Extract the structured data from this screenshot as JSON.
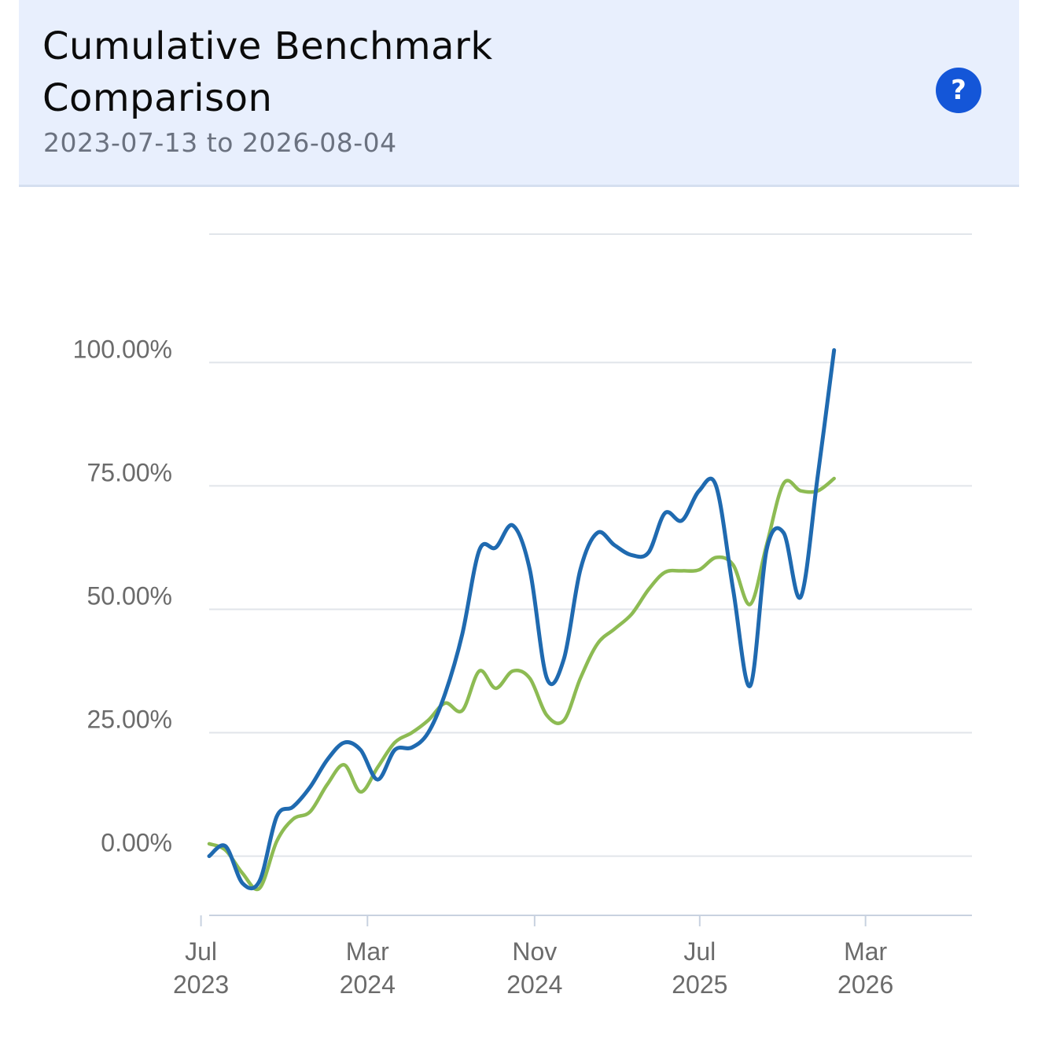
{
  "header": {
    "title": "Cumulative Benchmark Comparison",
    "subtitle": "2023-07-13 to 2026-08-04",
    "help_label": "?"
  },
  "chart_data": {
    "type": "line",
    "x_start": "2023-07-13",
    "x_end": "2026-08-04",
    "ylim": [
      -12,
      126
    ],
    "y_ticks": [
      {
        "value": 0,
        "label": "0.00%"
      },
      {
        "value": 25,
        "label": "25.00%"
      },
      {
        "value": 50,
        "label": "50.00%"
      },
      {
        "value": 75,
        "label": "75.00%"
      },
      {
        "value": 100,
        "label": "100.00%"
      }
    ],
    "x_ticks": [
      {
        "date": "2023-07-01",
        "month": "Jul",
        "year": "2023"
      },
      {
        "date": "2024-03-01",
        "month": "Mar",
        "year": "2024"
      },
      {
        "date": "2024-11-01",
        "month": "Nov",
        "year": "2024"
      },
      {
        "date": "2025-07-01",
        "month": "Jul",
        "year": "2025"
      },
      {
        "date": "2026-03-01",
        "month": "Mar",
        "year": "2026"
      }
    ],
    "grid": true,
    "series": [
      {
        "color": "#8dbb53",
        "points": [
          [
            "2023-07-13",
            2.5
          ],
          [
            "2023-08-06",
            1.2
          ],
          [
            "2023-08-31",
            -3.5
          ],
          [
            "2023-09-25",
            -6.5
          ],
          [
            "2023-10-20",
            3.0
          ],
          [
            "2023-11-13",
            7.5
          ],
          [
            "2023-12-08",
            9.0
          ],
          [
            "2024-01-02",
            14.5
          ],
          [
            "2024-01-27",
            18.5
          ],
          [
            "2024-02-20",
            13.0
          ],
          [
            "2024-03-16",
            18.0
          ],
          [
            "2024-04-10",
            23.0
          ],
          [
            "2024-05-05",
            25.0
          ],
          [
            "2024-05-29",
            27.5
          ],
          [
            "2024-06-23",
            31.0
          ],
          [
            "2024-07-18",
            29.5
          ],
          [
            "2024-08-12",
            37.5
          ],
          [
            "2024-09-05",
            34.0
          ],
          [
            "2024-09-30",
            37.5
          ],
          [
            "2024-10-25",
            36.0
          ],
          [
            "2024-11-19",
            28.5
          ],
          [
            "2024-12-14",
            27.5
          ],
          [
            "2025-01-07",
            36.0
          ],
          [
            "2025-02-01",
            43.0
          ],
          [
            "2025-02-26",
            46.0
          ],
          [
            "2025-03-23",
            49.0
          ],
          [
            "2025-04-17",
            54.0
          ],
          [
            "2025-05-11",
            57.5
          ],
          [
            "2025-06-05",
            57.8
          ],
          [
            "2025-06-30",
            58.0
          ],
          [
            "2025-07-25",
            60.5
          ],
          [
            "2025-08-19",
            59.0
          ],
          [
            "2025-09-13",
            51.0
          ],
          [
            "2025-10-07",
            63.0
          ],
          [
            "2025-11-01",
            75.5
          ],
          [
            "2025-11-26",
            74.0
          ],
          [
            "2025-12-21",
            74.0
          ],
          [
            "2026-01-14",
            76.5
          ]
        ]
      },
      {
        "color": "#1f6ab0",
        "points": [
          [
            "2023-07-13",
            0.0
          ],
          [
            "2023-08-06",
            2.0
          ],
          [
            "2023-08-31",
            -5.5
          ],
          [
            "2023-09-25",
            -5.0
          ],
          [
            "2023-10-20",
            8.0
          ],
          [
            "2023-11-13",
            10.0
          ],
          [
            "2023-12-08",
            14.0
          ],
          [
            "2024-01-02",
            19.5
          ],
          [
            "2024-01-27",
            23.0
          ],
          [
            "2024-02-20",
            21.5
          ],
          [
            "2024-03-16",
            15.5
          ],
          [
            "2024-04-10",
            21.5
          ],
          [
            "2024-05-05",
            22.0
          ],
          [
            "2024-05-29",
            25.0
          ],
          [
            "2024-06-23",
            33.0
          ],
          [
            "2024-07-18",
            45.0
          ],
          [
            "2024-08-12",
            62.0
          ],
          [
            "2024-09-05",
            62.5
          ],
          [
            "2024-09-30",
            67.0
          ],
          [
            "2024-10-25",
            58.0
          ],
          [
            "2024-11-19",
            36.0
          ],
          [
            "2024-12-14",
            40.0
          ],
          [
            "2025-01-07",
            58.0
          ],
          [
            "2025-02-01",
            65.5
          ],
          [
            "2025-02-26",
            63.0
          ],
          [
            "2025-03-23",
            61.0
          ],
          [
            "2025-04-17",
            61.5
          ],
          [
            "2025-05-11",
            69.5
          ],
          [
            "2025-06-05",
            68.0
          ],
          [
            "2025-06-30",
            74.0
          ],
          [
            "2025-07-25",
            75.0
          ],
          [
            "2025-08-19",
            54.0
          ],
          [
            "2025-09-13",
            34.5
          ],
          [
            "2025-10-07",
            62.0
          ],
          [
            "2025-11-01",
            65.5
          ],
          [
            "2025-11-26",
            52.5
          ],
          [
            "2025-12-21",
            77.0
          ],
          [
            "2026-01-14",
            102.5
          ]
        ]
      }
    ]
  }
}
